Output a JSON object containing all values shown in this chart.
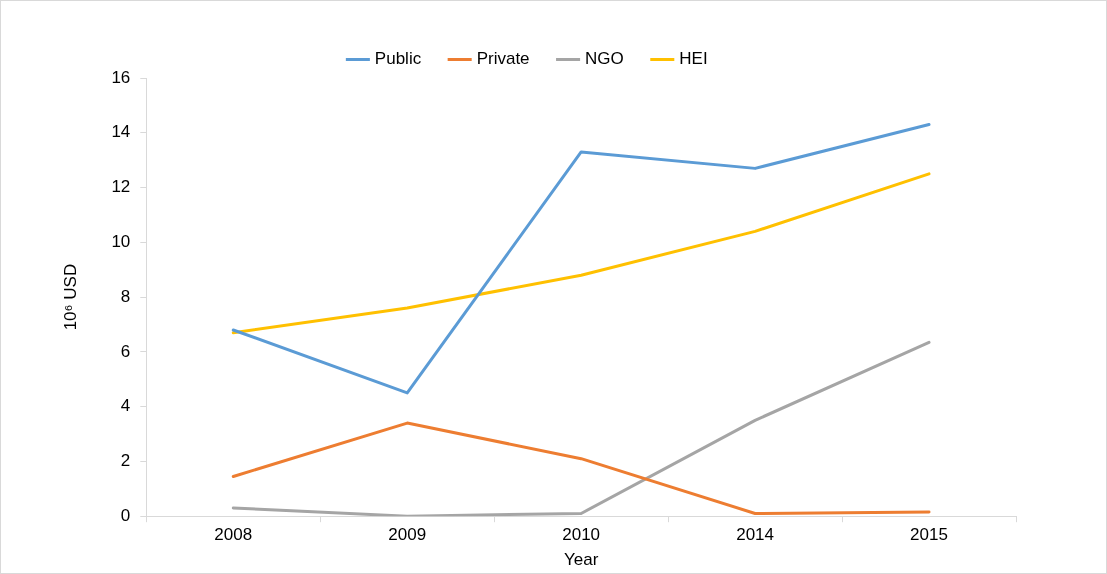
{
  "chart_data": {
    "type": "line",
    "xlabel": "Year",
    "ylabel": "10⁶ USD",
    "categories": [
      "2008",
      "2009",
      "2010",
      "2014",
      "2015"
    ],
    "series": [
      {
        "name": "Public",
        "color": "#5b9bd5",
        "values": [
          6.8,
          4.5,
          13.3,
          12.7,
          14.3
        ]
      },
      {
        "name": "Private",
        "color": "#ed7d31",
        "values": [
          1.45,
          3.4,
          2.1,
          0.1,
          0.15
        ]
      },
      {
        "name": "NGO",
        "color": "#a5a5a5",
        "values": [
          0.3,
          0,
          0.1,
          3.5,
          6.35
        ]
      },
      {
        "name": "HEI",
        "color": "#ffc000",
        "values": [
          6.7,
          7.6,
          8.8,
          10.4,
          12.5
        ]
      }
    ],
    "ylim": [
      0,
      16
    ],
    "yticks": [
      0,
      2,
      4,
      6,
      8,
      10,
      12,
      14,
      16
    ],
    "grid": false,
    "legend": "top",
    "marker": "none",
    "line_style": "solid"
  }
}
